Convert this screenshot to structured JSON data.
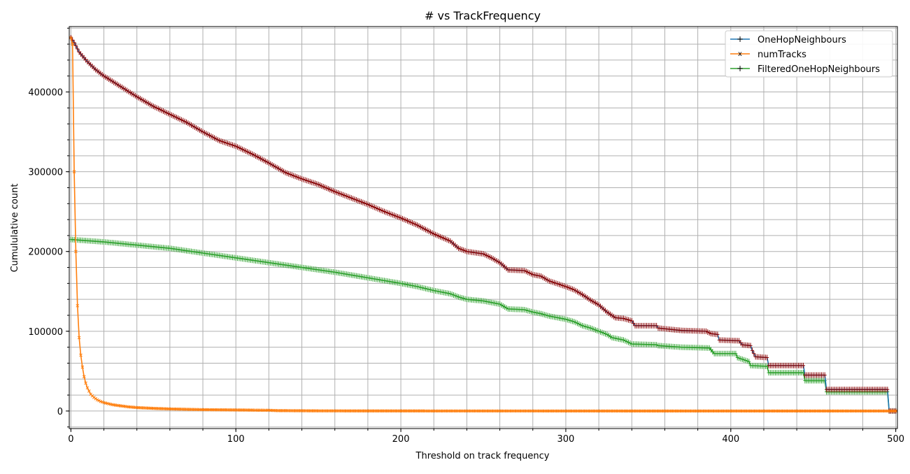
{
  "colors": {
    "OneHopNeighbours": "#1f77b4",
    "numTracks": "#ff7f0e",
    "FilteredOneHopNeighbours": "#2ca02c",
    "marker_OneHopNeighbours": "#8b0000",
    "grid": "#b0b0b0"
  },
  "chart_data": {
    "type": "line",
    "title": "# vs TrackFrequency",
    "xlabel": "Threshold on track frequency",
    "ylabel": "Cumululative count",
    "xlim": [
      -1,
      501
    ],
    "ylim": [
      -22000,
      482000
    ],
    "xticks": [
      0,
      100,
      200,
      300,
      400,
      500
    ],
    "yticks": [
      0,
      100000,
      200000,
      300000,
      400000
    ],
    "xtick_labels": [
      "0",
      "100",
      "200",
      "300",
      "400",
      "500"
    ],
    "ytick_labels": [
      "0",
      "100000",
      "200000",
      "300000",
      "400000"
    ],
    "grid": true,
    "minor_grid": true,
    "legend_position": "top-right",
    "series": [
      {
        "name": "OneHopNeighbours",
        "marker": "+",
        "points": [
          [
            0,
            468000
          ],
          [
            1,
            465000
          ],
          [
            2,
            462000
          ],
          [
            5,
            450000
          ],
          [
            10,
            438000
          ],
          [
            15,
            428000
          ],
          [
            20,
            420000
          ],
          [
            30,
            407000
          ],
          [
            40,
            394000
          ],
          [
            50,
            382000
          ],
          [
            60,
            372000
          ],
          [
            70,
            362000
          ],
          [
            80,
            350000
          ],
          [
            90,
            339000
          ],
          [
            100,
            332000
          ],
          [
            110,
            322000
          ],
          [
            120,
            311000
          ],
          [
            130,
            299000
          ],
          [
            140,
            291000
          ],
          [
            150,
            284000
          ],
          [
            160,
            275000
          ],
          [
            170,
            267000
          ],
          [
            180,
            259000
          ],
          [
            190,
            250000
          ],
          [
            200,
            242000
          ],
          [
            210,
            233000
          ],
          [
            220,
            222000
          ],
          [
            230,
            213000
          ],
          [
            235,
            204000
          ],
          [
            240,
            200000
          ],
          [
            250,
            197000
          ],
          [
            255,
            192000
          ],
          [
            260,
            186000
          ],
          [
            265,
            177000
          ],
          [
            275,
            176000
          ],
          [
            280,
            171000
          ],
          [
            285,
            169000
          ],
          [
            290,
            163000
          ],
          [
            300,
            156000
          ],
          [
            305,
            152000
          ],
          [
            310,
            146000
          ],
          [
            315,
            139000
          ],
          [
            320,
            133000
          ],
          [
            325,
            124000
          ],
          [
            330,
            117000
          ],
          [
            335,
            116000
          ],
          [
            340,
            113000
          ],
          [
            342,
            107000
          ],
          [
            355,
            107000
          ],
          [
            356,
            104000
          ],
          [
            370,
            101000
          ],
          [
            385,
            100000
          ],
          [
            388,
            97000
          ],
          [
            392,
            96000
          ],
          [
            393,
            89000
          ],
          [
            405,
            88000
          ],
          [
            407,
            83000
          ],
          [
            412,
            82000
          ],
          [
            413,
            76000
          ],
          [
            415,
            68000
          ],
          [
            422,
            67000
          ],
          [
            423,
            57000
          ],
          [
            444,
            57000
          ],
          [
            445,
            45000
          ],
          [
            457,
            45000
          ],
          [
            458,
            27000
          ],
          [
            495,
            27000
          ],
          [
            496,
            0
          ],
          [
            500,
            0
          ]
        ]
      },
      {
        "name": "numTracks",
        "marker": "x",
        "points": [
          [
            0,
            468000
          ],
          [
            1,
            460000
          ],
          [
            2,
            300000
          ],
          [
            3,
            200000
          ],
          [
            4,
            132000
          ],
          [
            5,
            92000
          ],
          [
            6,
            70000
          ],
          [
            7,
            55000
          ],
          [
            8,
            43000
          ],
          [
            9,
            35000
          ],
          [
            10,
            29000
          ],
          [
            12,
            21000
          ],
          [
            14,
            17000
          ],
          [
            16,
            14000
          ],
          [
            18,
            12000
          ],
          [
            20,
            10500
          ],
          [
            25,
            8000
          ],
          [
            30,
            6500
          ],
          [
            35,
            5200
          ],
          [
            40,
            4300
          ],
          [
            50,
            3300
          ],
          [
            60,
            2600
          ],
          [
            70,
            2100
          ],
          [
            80,
            1700
          ],
          [
            100,
            1300
          ],
          [
            120,
            900
          ],
          [
            125,
            500
          ],
          [
            150,
            200
          ],
          [
            200,
            100
          ],
          [
            300,
            50
          ],
          [
            400,
            20
          ],
          [
            500,
            0
          ]
        ]
      },
      {
        "name": "FilteredOneHopNeighbours",
        "marker": "+",
        "points": [
          [
            0,
            215000
          ],
          [
            20,
            212000
          ],
          [
            40,
            208000
          ],
          [
            60,
            204000
          ],
          [
            80,
            198000
          ],
          [
            100,
            192000
          ],
          [
            120,
            186000
          ],
          [
            140,
            180000
          ],
          [
            160,
            174000
          ],
          [
            180,
            167000
          ],
          [
            200,
            160000
          ],
          [
            210,
            156000
          ],
          [
            220,
            151000
          ],
          [
            230,
            147000
          ],
          [
            235,
            143000
          ],
          [
            240,
            140000
          ],
          [
            250,
            138000
          ],
          [
            260,
            134000
          ],
          [
            265,
            128000
          ],
          [
            275,
            127000
          ],
          [
            280,
            124000
          ],
          [
            285,
            122000
          ],
          [
            290,
            119000
          ],
          [
            300,
            115000
          ],
          [
            305,
            112000
          ],
          [
            310,
            107000
          ],
          [
            315,
            104000
          ],
          [
            320,
            100000
          ],
          [
            325,
            96000
          ],
          [
            328,
            92000
          ],
          [
            335,
            89000
          ],
          [
            340,
            84000
          ],
          [
            355,
            83000
          ],
          [
            356,
            82000
          ],
          [
            370,
            80000
          ],
          [
            387,
            79000
          ],
          [
            390,
            72000
          ],
          [
            403,
            72000
          ],
          [
            404,
            67000
          ],
          [
            411,
            62000
          ],
          [
            412,
            57000
          ],
          [
            422,
            56000
          ],
          [
            423,
            48000
          ],
          [
            444,
            48000
          ],
          [
            445,
            38000
          ],
          [
            457,
            38000
          ],
          [
            458,
            24000
          ],
          [
            495,
            24000
          ],
          [
            496,
            0
          ],
          [
            500,
            0
          ]
        ]
      }
    ]
  }
}
